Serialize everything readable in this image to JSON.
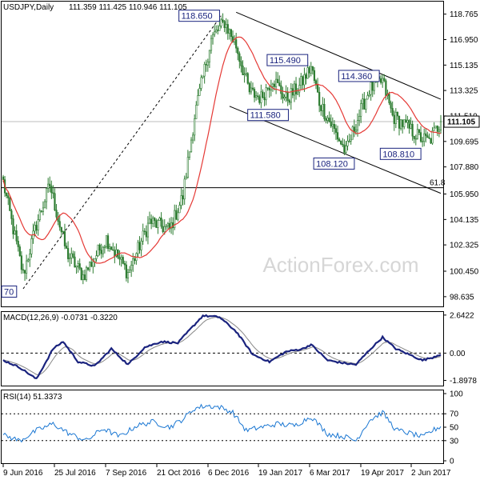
{
  "chart_data": [
    {
      "type": "candlestick",
      "title": "USDJPY,Daily",
      "ohlc_readout": "111.359 111.425 110.946 111.105",
      "last_price_label": "111.105",
      "last_price": 111.105,
      "ylim": [
        98.0,
        119.6
      ],
      "y_ticks": [
        "118.765",
        "116.950",
        "115.135",
        "113.325",
        "111.510",
        "109.695",
        "107.880",
        "105.950",
        "104.135",
        "102.325",
        "100.450",
        "98.635"
      ],
      "x_tick_labels": [
        "9 Jun 2016",
        "25 Jul 2016",
        "7 Sep 2016",
        "21 Oct 2016",
        "6 Dec 2016",
        "19 Jan 2017",
        "6 Mar 2017",
        "19 Apr 2017",
        "2 Jun 2017"
      ],
      "bar_count": 264,
      "bar_color": "#2e7d32",
      "ma_color": "#e53935",
      "channel_color": "#000000",
      "anchors": [
        {
          "i": 0,
          "p": 106.8
        },
        {
          "i": 5,
          "p": 104.0
        },
        {
          "i": 12,
          "p": 100.2
        },
        {
          "i": 20,
          "p": 103.8
        },
        {
          "i": 28,
          "p": 106.6
        },
        {
          "i": 38,
          "p": 101.8
        },
        {
          "i": 48,
          "p": 100.1
        },
        {
          "i": 62,
          "p": 102.8
        },
        {
          "i": 75,
          "p": 100.3
        },
        {
          "i": 88,
          "p": 104.0
        },
        {
          "i": 100,
          "p": 103.4
        },
        {
          "i": 108,
          "p": 105.8
        },
        {
          "i": 115,
          "p": 111.5
        },
        {
          "i": 125,
          "p": 117.0
        },
        {
          "i": 133,
          "p": 118.2
        },
        {
          "i": 140,
          "p": 116.5
        },
        {
          "i": 148,
          "p": 113.2
        },
        {
          "i": 155,
          "p": 112.8
        },
        {
          "i": 162,
          "p": 114.2
        },
        {
          "i": 170,
          "p": 112.7
        },
        {
          "i": 178,
          "p": 113.6
        },
        {
          "i": 185,
          "p": 115.0
        },
        {
          "i": 190,
          "p": 112.5
        },
        {
          "i": 198,
          "p": 110.7
        },
        {
          "i": 206,
          "p": 108.9
        },
        {
          "i": 212,
          "p": 111.0
        },
        {
          "i": 220,
          "p": 113.4
        },
        {
          "i": 228,
          "p": 114.0
        },
        {
          "i": 234,
          "p": 111.5
        },
        {
          "i": 242,
          "p": 110.8
        },
        {
          "i": 250,
          "p": 110.0
        },
        {
          "i": 256,
          "p": 109.7
        },
        {
          "i": 263,
          "p": 111.105
        }
      ],
      "fib_level": {
        "label": "61.8",
        "price": 106.4
      },
      "horizontal_line_price": 111.105,
      "annotations": [
        {
          "label": "118.650",
          "i": 131,
          "price": 118.65,
          "side": "left"
        },
        {
          "label": "115.490",
          "i": 184,
          "price": 115.49,
          "side": "left"
        },
        {
          "label": "114.360",
          "i": 227,
          "price": 114.36,
          "side": "left"
        },
        {
          "label": "111.580",
          "i": 146,
          "price": 111.58,
          "side": "right"
        },
        {
          "label": "108.120",
          "i": 212,
          "price": 108.12,
          "side": "left"
        },
        {
          "label": "108.810",
          "i": 252,
          "price": 108.81,
          "side": "left"
        },
        {
          "label": "70",
          "i": 0,
          "price": 99.0,
          "side": "right"
        }
      ],
      "lines": [
        {
          "name": "uptrend",
          "from": {
            "i": 12,
            "p": 99.2
          },
          "to": {
            "i": 131,
            "p": 118.65
          },
          "style": "dashed"
        },
        {
          "name": "channel-upper",
          "from": {
            "i": 140,
            "p": 118.9
          },
          "to": {
            "i": 263,
            "p": 112.7
          },
          "style": "solid"
        },
        {
          "name": "channel-lower",
          "from": {
            "i": 136,
            "p": 112.2
          },
          "to": {
            "i": 263,
            "p": 106.0
          },
          "style": "solid"
        }
      ]
    },
    {
      "type": "line",
      "title": "MACD(12,26,9) -0.0731 -0.3220",
      "y_ticks": [
        "2.6422",
        "0.00",
        "-1.8978"
      ],
      "ylim": [
        -2.2,
        2.8
      ],
      "macd_color": "#1a237e",
      "signal_color": "#888888",
      "anchors": [
        {
          "i": 0,
          "v": -0.5
        },
        {
          "i": 10,
          "v": -1.0
        },
        {
          "i": 20,
          "v": -1.8
        },
        {
          "i": 30,
          "v": 0.3
        },
        {
          "i": 36,
          "v": 0.8
        },
        {
          "i": 45,
          "v": -0.6
        },
        {
          "i": 55,
          "v": -0.9
        },
        {
          "i": 65,
          "v": 0.3
        },
        {
          "i": 75,
          "v": -0.8
        },
        {
          "i": 85,
          "v": 0.4
        },
        {
          "i": 95,
          "v": 0.8
        },
        {
          "i": 105,
          "v": 0.7
        },
        {
          "i": 112,
          "v": 1.6
        },
        {
          "i": 120,
          "v": 2.6
        },
        {
          "i": 130,
          "v": 2.5
        },
        {
          "i": 140,
          "v": 1.5
        },
        {
          "i": 150,
          "v": -0.1
        },
        {
          "i": 160,
          "v": -0.6
        },
        {
          "i": 170,
          "v": 0.1
        },
        {
          "i": 180,
          "v": 0.3
        },
        {
          "i": 185,
          "v": 0.6
        },
        {
          "i": 195,
          "v": -0.5
        },
        {
          "i": 205,
          "v": -0.7
        },
        {
          "i": 212,
          "v": -0.8
        },
        {
          "i": 220,
          "v": 0.2
        },
        {
          "i": 228,
          "v": 1.1
        },
        {
          "i": 236,
          "v": 0.3
        },
        {
          "i": 246,
          "v": -0.2
        },
        {
          "i": 252,
          "v": -0.5
        },
        {
          "i": 258,
          "v": -0.3
        },
        {
          "i": 263,
          "v": -0.07
        }
      ]
    },
    {
      "type": "line",
      "title": "RSI(14) 51.3373",
      "y_ticks": [
        "100",
        "70",
        "50",
        "30",
        "0"
      ],
      "ylim": [
        0,
        100
      ],
      "rsi_color": "#1976d2",
      "anchors": [
        {
          "i": 0,
          "v": 38
        },
        {
          "i": 10,
          "v": 30
        },
        {
          "i": 20,
          "v": 45
        },
        {
          "i": 30,
          "v": 55
        },
        {
          "i": 40,
          "v": 40
        },
        {
          "i": 50,
          "v": 30
        },
        {
          "i": 60,
          "v": 48
        },
        {
          "i": 70,
          "v": 36
        },
        {
          "i": 80,
          "v": 52
        },
        {
          "i": 90,
          "v": 58
        },
        {
          "i": 100,
          "v": 50
        },
        {
          "i": 108,
          "v": 62
        },
        {
          "i": 115,
          "v": 78
        },
        {
          "i": 122,
          "v": 82
        },
        {
          "i": 130,
          "v": 80
        },
        {
          "i": 138,
          "v": 72
        },
        {
          "i": 146,
          "v": 45
        },
        {
          "i": 155,
          "v": 50
        },
        {
          "i": 165,
          "v": 55
        },
        {
          "i": 175,
          "v": 52
        },
        {
          "i": 185,
          "v": 66
        },
        {
          "i": 195,
          "v": 40
        },
        {
          "i": 205,
          "v": 36
        },
        {
          "i": 212,
          "v": 30
        },
        {
          "i": 220,
          "v": 60
        },
        {
          "i": 228,
          "v": 72
        },
        {
          "i": 236,
          "v": 46
        },
        {
          "i": 246,
          "v": 40
        },
        {
          "i": 252,
          "v": 35
        },
        {
          "i": 258,
          "v": 45
        },
        {
          "i": 263,
          "v": 51.3
        }
      ]
    }
  ],
  "watermark": "ActionForex.com"
}
